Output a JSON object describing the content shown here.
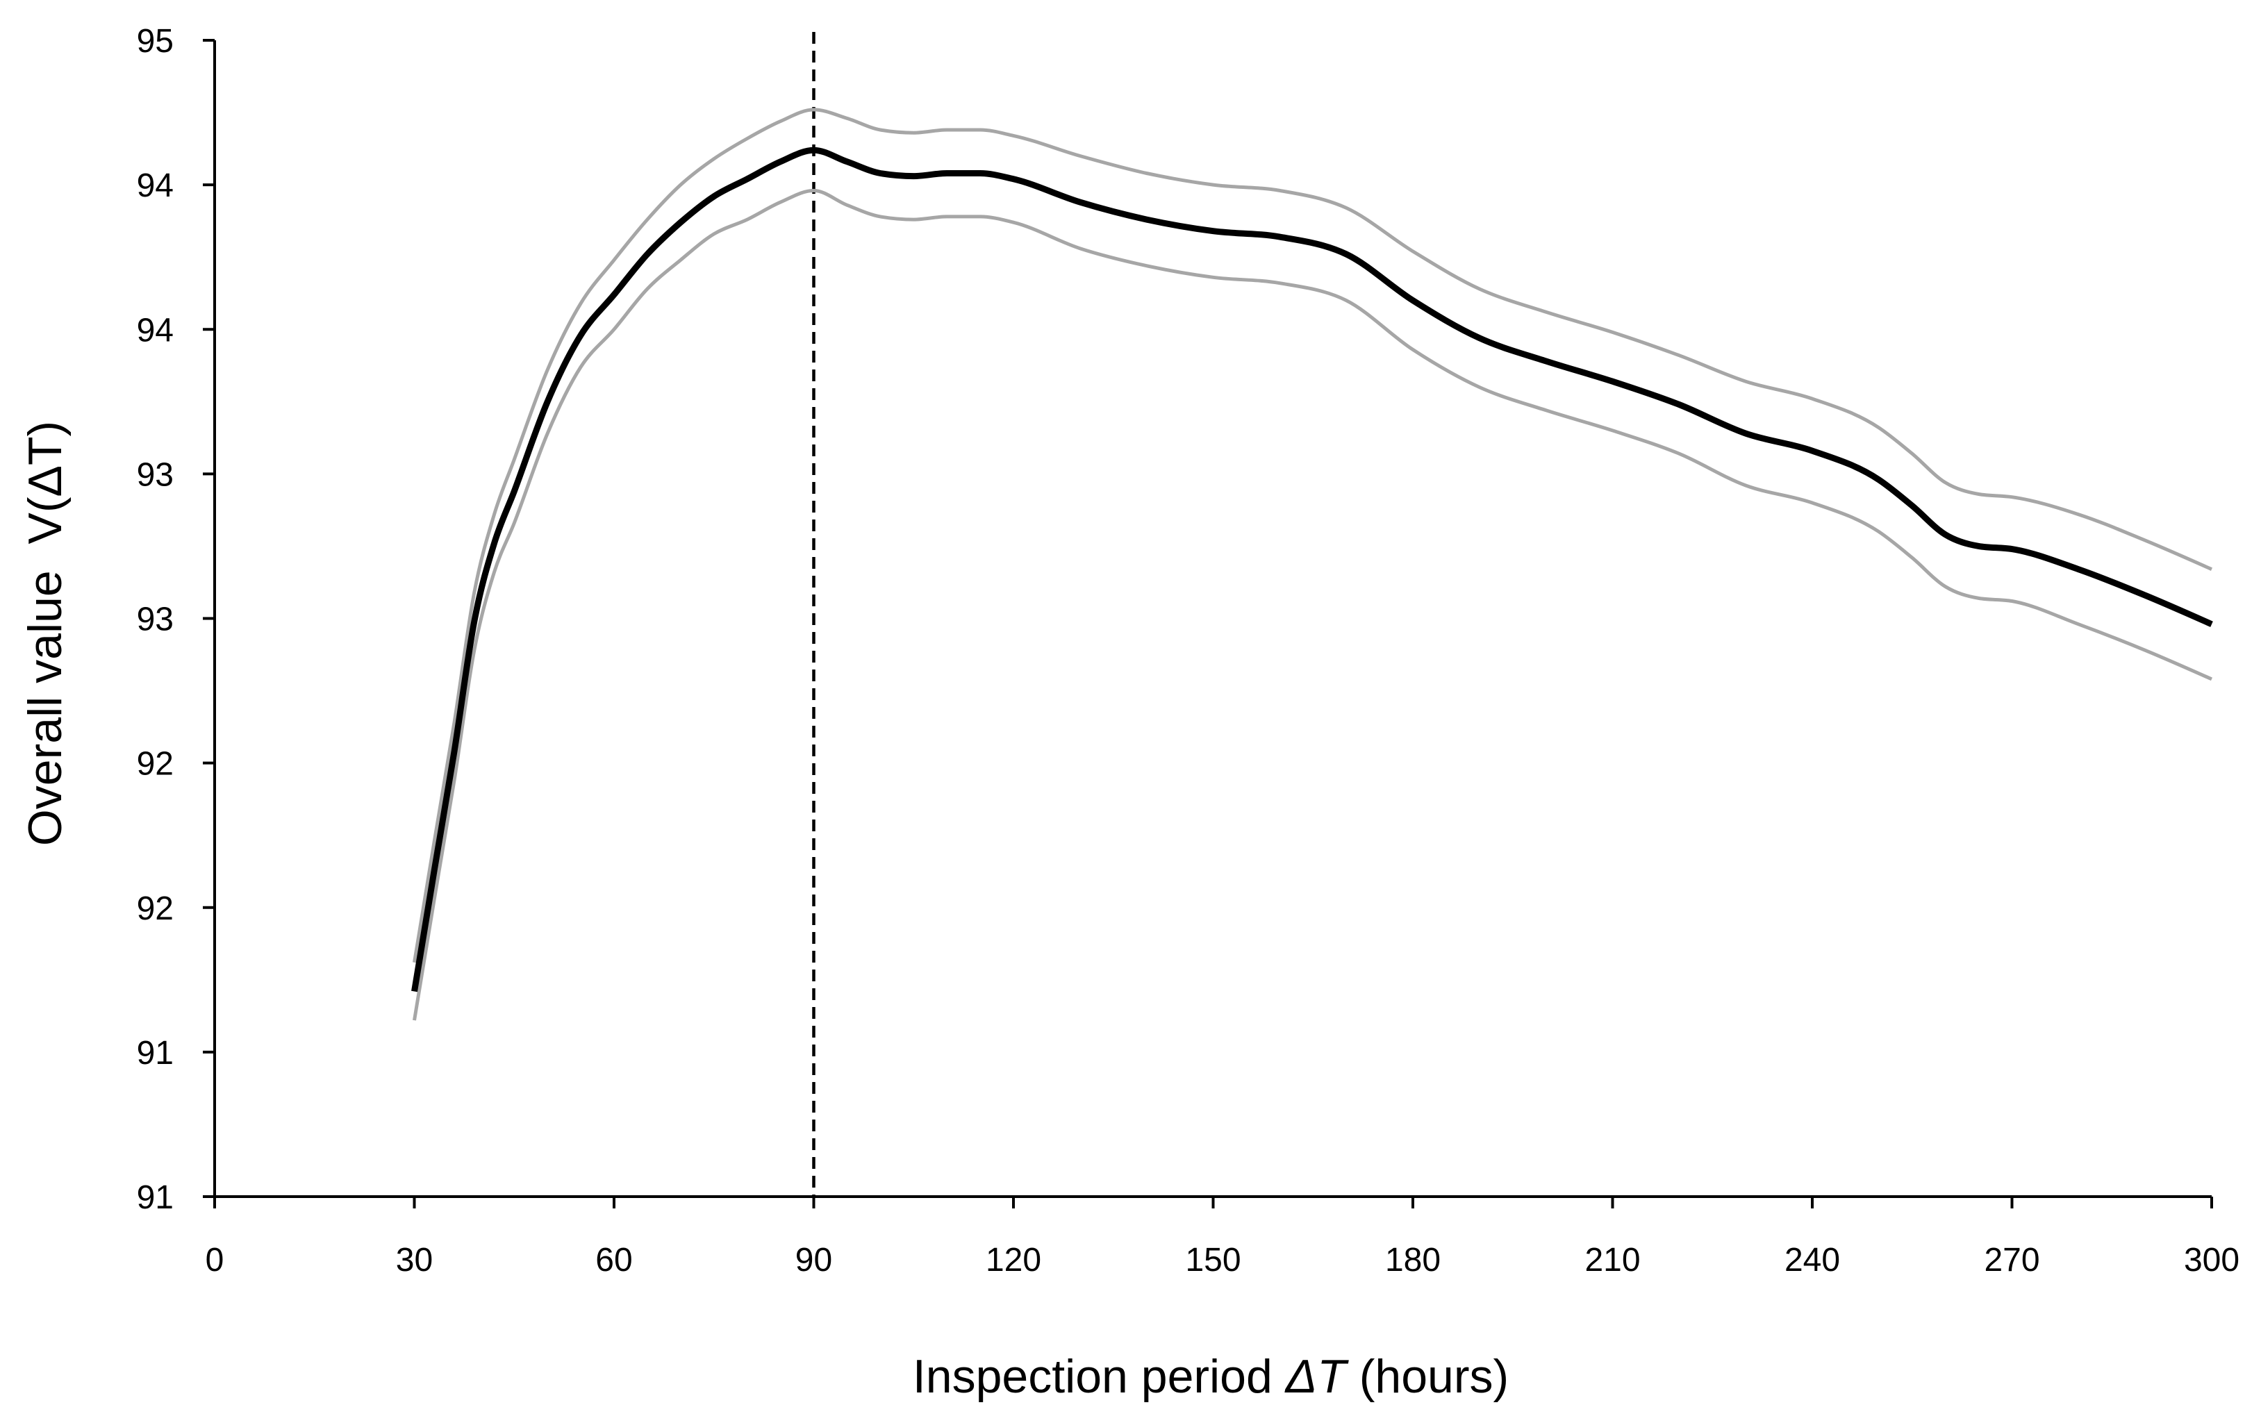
{
  "chart_data": {
    "type": "line",
    "xlabel": "Inspection period ΔT (hours)",
    "ylabel": "Overall value  V(ΔT)",
    "xlim": [
      0,
      300
    ],
    "ylim": [
      90.5,
      94.5
    ],
    "xticks": [
      0,
      30,
      60,
      90,
      120,
      150,
      180,
      210,
      240,
      270,
      300
    ],
    "xtick_labels": [
      "0",
      "30",
      "60",
      "90",
      "120",
      "150",
      "180",
      "210",
      "240",
      "270",
      "300"
    ],
    "yticks": [
      94.5,
      94,
      93.5,
      93,
      92.5,
      92,
      91.5,
      91,
      90.5
    ],
    "ytick_labels": [
      "95",
      "94",
      "94",
      "93",
      "93",
      "92",
      "92",
      "91",
      "91"
    ],
    "grid": false,
    "x": [
      30,
      33,
      36,
      39,
      42,
      45,
      50,
      55,
      60,
      65,
      70,
      75,
      80,
      85,
      90,
      95,
      100,
      105,
      110,
      115,
      120,
      130,
      140,
      150,
      160,
      170,
      180,
      190,
      200,
      210,
      220,
      230,
      240,
      250,
      255,
      260,
      265,
      270,
      280,
      290,
      300
    ],
    "series": [
      {
        "color": "#a6a6a6",
        "values": [
          91.31,
          91.73,
          92.14,
          92.59,
          92.86,
          93.05,
          93.36,
          93.59,
          93.74,
          93.88,
          94.0,
          94.09,
          94.16,
          94.22,
          94.26,
          94.23,
          94.19,
          94.18,
          94.19,
          94.19,
          94.17,
          94.1,
          94.04,
          94.0,
          93.98,
          93.92,
          93.77,
          93.64,
          93.56,
          93.49,
          93.41,
          93.32,
          93.26,
          93.16,
          93.07,
          92.97,
          92.93,
          92.92,
          92.86,
          92.77,
          92.67
        ]
      },
      {
        "color": "#000000",
        "values": [
          91.21,
          91.63,
          92.04,
          92.49,
          92.76,
          92.94,
          93.25,
          93.48,
          93.62,
          93.76,
          93.87,
          93.96,
          94.02,
          94.08,
          94.12,
          94.08,
          94.04,
          94.03,
          94.04,
          94.04,
          94.02,
          93.94,
          93.88,
          93.84,
          93.82,
          93.76,
          93.6,
          93.47,
          93.39,
          93.32,
          93.24,
          93.14,
          93.08,
          92.98,
          92.89,
          92.79,
          92.75,
          92.74,
          92.67,
          92.58,
          92.48
        ]
      },
      {
        "color": "#a6a6a6",
        "values": [
          91.11,
          91.53,
          91.94,
          92.39,
          92.66,
          92.83,
          93.14,
          93.37,
          93.5,
          93.64,
          93.74,
          93.83,
          93.88,
          93.94,
          93.98,
          93.93,
          93.89,
          93.88,
          93.89,
          93.89,
          93.87,
          93.78,
          93.72,
          93.68,
          93.66,
          93.6,
          93.43,
          93.3,
          93.22,
          93.15,
          93.07,
          92.96,
          92.9,
          92.8,
          92.71,
          92.61,
          92.57,
          92.56,
          92.48,
          92.39,
          92.29
        ]
      }
    ],
    "vlines": [
      {
        "x": 90,
        "color": "#000000",
        "dashed": true
      }
    ]
  }
}
